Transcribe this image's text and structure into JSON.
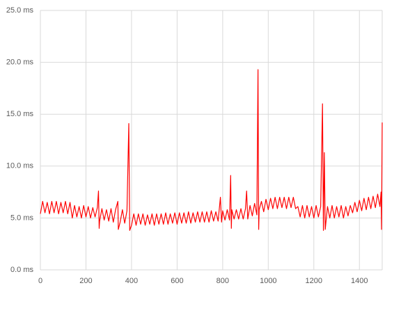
{
  "chart_data": {
    "type": "line",
    "x": [
      0,
      10,
      20,
      30,
      40,
      50,
      60,
      70,
      80,
      90,
      100,
      110,
      120,
      130,
      140,
      150,
      160,
      170,
      180,
      190,
      200,
      210,
      220,
      230,
      240,
      250,
      255,
      258,
      260,
      270,
      280,
      290,
      300,
      310,
      320,
      330,
      340,
      342,
      350,
      360,
      370,
      380,
      388,
      392,
      400,
      410,
      420,
      430,
      440,
      450,
      460,
      470,
      480,
      490,
      500,
      510,
      520,
      530,
      540,
      550,
      560,
      570,
      580,
      590,
      600,
      610,
      620,
      630,
      640,
      650,
      660,
      670,
      680,
      690,
      700,
      710,
      720,
      730,
      740,
      750,
      760,
      770,
      780,
      790,
      795,
      800,
      810,
      820,
      830,
      835,
      838,
      840,
      850,
      860,
      870,
      880,
      890,
      900,
      905,
      910,
      920,
      930,
      940,
      950,
      955,
      958,
      960,
      970,
      980,
      990,
      1000,
      1010,
      1020,
      1030,
      1040,
      1050,
      1060,
      1070,
      1080,
      1090,
      1100,
      1110,
      1120,
      1130,
      1140,
      1150,
      1160,
      1170,
      1180,
      1190,
      1200,
      1210,
      1220,
      1230,
      1238,
      1242,
      1246,
      1250,
      1260,
      1270,
      1280,
      1290,
      1300,
      1310,
      1320,
      1330,
      1340,
      1350,
      1360,
      1370,
      1380,
      1390,
      1400,
      1410,
      1420,
      1430,
      1440,
      1450,
      1460,
      1470,
      1480,
      1490,
      1495,
      1497,
      1500
    ],
    "series": [
      {
        "color": "#ff0000",
        "values": [
          5.4,
          6.6,
          5.5,
          6.5,
          5.4,
          6.6,
          5.5,
          6.6,
          5.4,
          6.5,
          5.5,
          6.6,
          5.4,
          6.5,
          5.0,
          6.2,
          5.1,
          6.1,
          5.0,
          6.2,
          5.1,
          6.1,
          5.0,
          6.0,
          5.1,
          6.0,
          7.6,
          4.0,
          4.7,
          5.9,
          4.8,
          5.8,
          4.7,
          5.9,
          4.6,
          5.8,
          6.6,
          3.9,
          4.6,
          5.8,
          4.5,
          5.7,
          14.1,
          3.8,
          4.3,
          5.4,
          4.3,
          5.4,
          4.4,
          5.4,
          4.3,
          5.3,
          4.4,
          5.4,
          4.3,
          5.4,
          4.4,
          5.4,
          4.4,
          5.5,
          4.4,
          5.4,
          4.5,
          5.5,
          4.4,
          5.5,
          4.5,
          5.5,
          4.5,
          5.6,
          4.5,
          5.5,
          4.6,
          5.6,
          4.6,
          5.6,
          4.6,
          5.6,
          4.6,
          5.7,
          4.7,
          5.6,
          4.7,
          7.0,
          4.6,
          5.7,
          4.8,
          5.8,
          4.8,
          9.1,
          4.0,
          5.8,
          4.9,
          5.8,
          4.9,
          5.9,
          4.9,
          5.9,
          7.6,
          4.9,
          6.2,
          5.2,
          6.4,
          5.3,
          19.3,
          3.9,
          5.8,
          6.6,
          5.6,
          6.8,
          5.8,
          6.9,
          5.9,
          7.0,
          5.9,
          7.0,
          6.0,
          7.0,
          5.9,
          7.0,
          6.0,
          7.0,
          5.9,
          6.1,
          5.1,
          6.2,
          5.0,
          6.2,
          5.1,
          6.1,
          5.0,
          6.2,
          5.1,
          6.1,
          16.0,
          3.8,
          11.3,
          3.9,
          6.1,
          5.0,
          6.2,
          5.0,
          6.1,
          5.1,
          6.2,
          5.0,
          6.1,
          5.2,
          6.2,
          5.5,
          6.5,
          5.6,
          6.7,
          5.7,
          6.9,
          5.8,
          7.0,
          5.9,
          7.1,
          6.0,
          7.3,
          6.1,
          7.5,
          3.9,
          14.2
        ]
      }
    ],
    "xlim": [
      0,
      1500
    ],
    "xticks": [
      0,
      200,
      400,
      600,
      800,
      1000,
      1200,
      1400
    ],
    "ylim": [
      0,
      25
    ],
    "yticks": [
      {
        "value": 0,
        "label": "0.0 ms"
      },
      {
        "value": 5,
        "label": "5.0 ms"
      },
      {
        "value": 10,
        "label": "10.0 ms"
      },
      {
        "value": 15,
        "label": "15.0 ms"
      },
      {
        "value": 20,
        "label": "20.0 ms"
      },
      {
        "value": 25,
        "label": "25.0 ms"
      }
    ],
    "grid": true
  }
}
